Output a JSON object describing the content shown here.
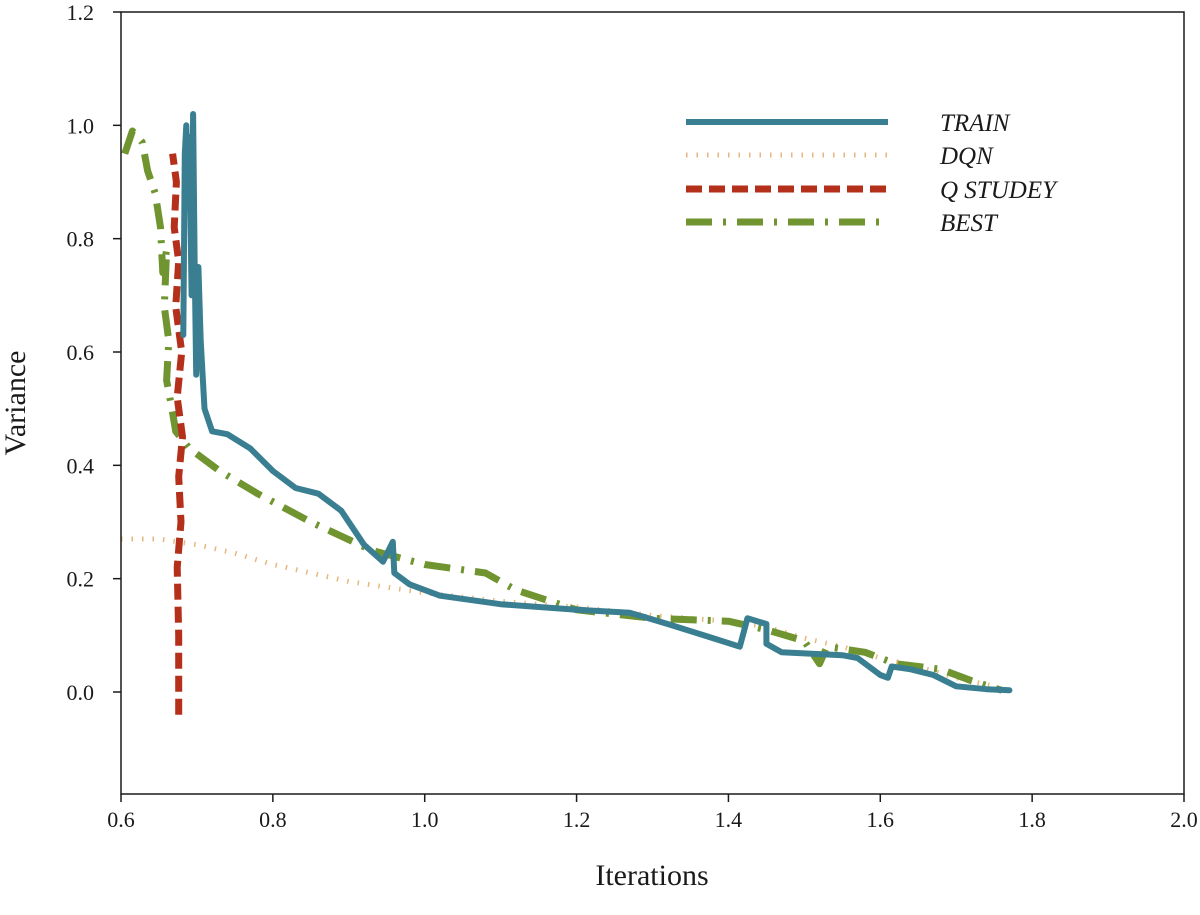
{
  "chart_data": {
    "type": "line",
    "xlabel": "Iterations",
    "ylabel": "Variance",
    "xlim": [
      0.6,
      2.0
    ],
    "ylim": [
      -0.18,
      1.2
    ],
    "xticks": [
      "0.6",
      "0.8",
      "1.0",
      "1.2",
      "1.4",
      "1.6",
      "1.8",
      "2.0"
    ],
    "yticks": [
      "0.0",
      "0.2",
      "0.4",
      "0.6",
      "0.8",
      "1.0",
      "1.2"
    ],
    "legend_position": "top-right",
    "series": [
      {
        "name": "TRAIN",
        "color": "#3a7f91",
        "style": "solid",
        "points": [
          [
            0.682,
            0.63
          ],
          [
            0.684,
            0.95
          ],
          [
            0.686,
            1.0
          ],
          [
            0.688,
            0.9
          ],
          [
            0.69,
            0.98
          ],
          [
            0.693,
            0.7
          ],
          [
            0.695,
            1.02
          ],
          [
            0.697,
            0.75
          ],
          [
            0.699,
            0.56
          ],
          [
            0.702,
            0.75
          ],
          [
            0.705,
            0.62
          ],
          [
            0.71,
            0.5
          ],
          [
            0.72,
            0.46
          ],
          [
            0.74,
            0.455
          ],
          [
            0.77,
            0.43
          ],
          [
            0.8,
            0.39
          ],
          [
            0.83,
            0.36
          ],
          [
            0.86,
            0.35
          ],
          [
            0.89,
            0.32
          ],
          [
            0.92,
            0.26
          ],
          [
            0.945,
            0.23
          ],
          [
            0.958,
            0.265
          ],
          [
            0.96,
            0.21
          ],
          [
            0.98,
            0.19
          ],
          [
            1.02,
            0.17
          ],
          [
            1.1,
            0.155
          ],
          [
            1.2,
            0.145
          ],
          [
            1.27,
            0.14
          ],
          [
            1.32,
            0.12
          ],
          [
            1.38,
            0.095
          ],
          [
            1.415,
            0.08
          ],
          [
            1.425,
            0.13
          ],
          [
            1.45,
            0.12
          ],
          [
            1.45,
            0.085
          ],
          [
            1.47,
            0.07
          ],
          [
            1.55,
            0.065
          ],
          [
            1.57,
            0.06
          ],
          [
            1.6,
            0.03
          ],
          [
            1.61,
            0.025
          ],
          [
            1.615,
            0.045
          ],
          [
            1.64,
            0.04
          ],
          [
            1.67,
            0.03
          ],
          [
            1.7,
            0.01
          ],
          [
            1.74,
            0.005
          ],
          [
            1.77,
            0.003
          ]
        ]
      },
      {
        "name": "DQN",
        "color": "#e6b880",
        "style": "dotted",
        "points": [
          [
            0.6,
            0.27
          ],
          [
            0.65,
            0.27
          ],
          [
            0.7,
            0.26
          ],
          [
            0.75,
            0.245
          ],
          [
            0.8,
            0.225
          ],
          [
            0.85,
            0.21
          ],
          [
            0.9,
            0.195
          ],
          [
            0.95,
            0.185
          ],
          [
            1.0,
            0.175
          ],
          [
            1.1,
            0.16
          ],
          [
            1.2,
            0.15
          ],
          [
            1.3,
            0.135
          ],
          [
            1.4,
            0.125
          ],
          [
            1.45,
            0.115
          ],
          [
            1.5,
            0.095
          ],
          [
            1.55,
            0.08
          ],
          [
            1.6,
            0.06
          ],
          [
            1.65,
            0.045
          ],
          [
            1.7,
            0.025
          ],
          [
            1.75,
            0.01
          ]
        ]
      },
      {
        "name": "Q STUDEY",
        "color": "#b5301a",
        "style": "dashed",
        "points": [
          [
            0.676,
            -0.04
          ],
          [
            0.676,
            0.1
          ],
          [
            0.674,
            0.22
          ],
          [
            0.679,
            0.3
          ],
          [
            0.676,
            0.38
          ],
          [
            0.681,
            0.45
          ],
          [
            0.674,
            0.52
          ],
          [
            0.68,
            0.6
          ],
          [
            0.672,
            0.68
          ],
          [
            0.676,
            0.76
          ],
          [
            0.67,
            0.82
          ],
          [
            0.673,
            0.9
          ],
          [
            0.668,
            0.95
          ]
        ]
      },
      {
        "name": "BEST",
        "color": "#6f9430",
        "style": "dash-dot",
        "points": [
          [
            0.605,
            0.95
          ],
          [
            0.615,
            0.99
          ],
          [
            0.628,
            0.97
          ],
          [
            0.635,
            0.92
          ],
          [
            0.645,
            0.88
          ],
          [
            0.652,
            0.82
          ],
          [
            0.655,
            0.74
          ],
          [
            0.66,
            0.78
          ],
          [
            0.657,
            0.68
          ],
          [
            0.663,
            0.62
          ],
          [
            0.66,
            0.55
          ],
          [
            0.667,
            0.5
          ],
          [
            0.672,
            0.46
          ],
          [
            0.69,
            0.43
          ],
          [
            0.73,
            0.39
          ],
          [
            0.78,
            0.35
          ],
          [
            0.85,
            0.3
          ],
          [
            0.93,
            0.25
          ],
          [
            1.0,
            0.225
          ],
          [
            1.08,
            0.21
          ],
          [
            1.12,
            0.18
          ],
          [
            1.2,
            0.145
          ],
          [
            1.3,
            0.13
          ],
          [
            1.4,
            0.125
          ],
          [
            1.45,
            0.11
          ],
          [
            1.5,
            0.09
          ],
          [
            1.515,
            0.06
          ],
          [
            1.52,
            0.05
          ],
          [
            1.53,
            0.08
          ],
          [
            1.58,
            0.07
          ],
          [
            1.62,
            0.05
          ],
          [
            1.68,
            0.04
          ],
          [
            1.72,
            0.02
          ],
          [
            1.76,
            0.003
          ]
        ]
      }
    ]
  }
}
